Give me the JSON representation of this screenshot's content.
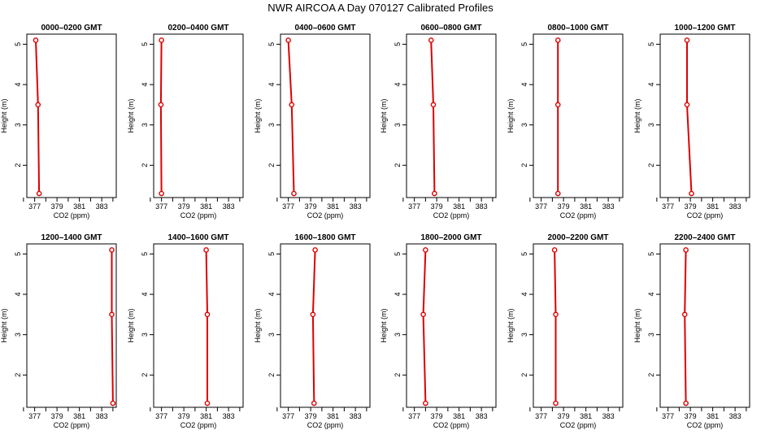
{
  "title": "NWR AIRCOA A  Day 070127  Calibrated Profiles",
  "colors": {
    "profile": "#dd0000",
    "axis": "#000000",
    "background": "#ffffff"
  },
  "chart_data": [
    {
      "type": "line",
      "title": "0000–0200 GMT",
      "xlabel": "CO2 (ppm)",
      "ylabel": "Height (m)",
      "xlim": [
        376.3,
        384.3
      ],
      "ylim": [
        1.2,
        5.25
      ],
      "xticks": [
        377,
        379,
        381,
        383
      ],
      "yticks": [
        2,
        3,
        4,
        5
      ],
      "grid": false,
      "series": [
        {
          "x": [
            377.4,
            377.3,
            377.1
          ],
          "y": [
            1.3,
            3.5,
            5.1
          ]
        }
      ]
    },
    {
      "type": "line",
      "title": "0200–0400 GMT",
      "xlabel": "CO2 (ppm)",
      "ylabel": "Height (m)",
      "xlim": [
        376.3,
        384.3
      ],
      "ylim": [
        1.2,
        5.25
      ],
      "xticks": [
        377,
        379,
        381,
        383
      ],
      "yticks": [
        2,
        3,
        4,
        5
      ],
      "grid": false,
      "series": [
        {
          "x": [
            377.0,
            376.95,
            377.0
          ],
          "y": [
            1.3,
            3.5,
            5.1
          ]
        }
      ]
    },
    {
      "type": "line",
      "title": "0400–0600 GMT",
      "xlabel": "CO2 (ppm)",
      "ylabel": "Height (m)",
      "xlim": [
        376.3,
        384.3
      ],
      "ylim": [
        1.2,
        5.25
      ],
      "xticks": [
        377,
        379,
        381,
        383
      ],
      "yticks": [
        2,
        3,
        4,
        5
      ],
      "grid": false,
      "series": [
        {
          "x": [
            377.5,
            377.3,
            377.0
          ],
          "y": [
            1.3,
            3.5,
            5.1
          ]
        }
      ]
    },
    {
      "type": "line",
      "title": "0600–0800 GMT",
      "xlabel": "CO2 (ppm)",
      "ylabel": "Height (m)",
      "xlim": [
        376.3,
        384.3
      ],
      "ylim": [
        1.2,
        5.25
      ],
      "xticks": [
        377,
        379,
        381,
        383
      ],
      "yticks": [
        2,
        3,
        4,
        5
      ],
      "grid": false,
      "series": [
        {
          "x": [
            378.8,
            378.7,
            378.5
          ],
          "y": [
            1.3,
            3.5,
            5.1
          ]
        }
      ]
    },
    {
      "type": "line",
      "title": "0800–1000 GMT",
      "xlabel": "CO2 (ppm)",
      "ylabel": "Height (m)",
      "xlim": [
        376.3,
        384.3
      ],
      "ylim": [
        1.2,
        5.25
      ],
      "xticks": [
        377,
        379,
        381,
        383
      ],
      "yticks": [
        2,
        3,
        4,
        5
      ],
      "grid": false,
      "series": [
        {
          "x": [
            378.5,
            378.5,
            378.5
          ],
          "y": [
            1.3,
            3.5,
            5.1
          ]
        }
      ]
    },
    {
      "type": "line",
      "title": "1000–1200 GMT",
      "xlabel": "CO2 (ppm)",
      "ylabel": "Height (m)",
      "xlim": [
        376.3,
        384.3
      ],
      "ylim": [
        1.2,
        5.25
      ],
      "xticks": [
        377,
        379,
        381,
        383
      ],
      "yticks": [
        2,
        3,
        4,
        5
      ],
      "grid": false,
      "series": [
        {
          "x": [
            379.1,
            378.7,
            378.7
          ],
          "y": [
            1.3,
            3.5,
            5.1
          ]
        }
      ]
    },
    {
      "type": "line",
      "title": "1200–1400 GMT",
      "xlabel": "CO2 (ppm)",
      "ylabel": "Height (m)",
      "xlim": [
        376.3,
        384.3
      ],
      "ylim": [
        1.2,
        5.25
      ],
      "xticks": [
        377,
        379,
        381,
        383
      ],
      "yticks": [
        2,
        3,
        4,
        5
      ],
      "grid": false,
      "series": [
        {
          "x": [
            384.0,
            383.9,
            383.9
          ],
          "y": [
            1.3,
            3.5,
            5.1
          ]
        }
      ]
    },
    {
      "type": "line",
      "title": "1400–1600 GMT",
      "xlabel": "CO2 (ppm)",
      "ylabel": "Height (m)",
      "xlim": [
        376.3,
        384.3
      ],
      "ylim": [
        1.2,
        5.25
      ],
      "xticks": [
        377,
        379,
        381,
        383
      ],
      "yticks": [
        2,
        3,
        4,
        5
      ],
      "grid": false,
      "series": [
        {
          "x": [
            381.1,
            381.1,
            381.0
          ],
          "y": [
            1.3,
            3.5,
            5.1
          ]
        }
      ]
    },
    {
      "type": "line",
      "title": "1600–1800 GMT",
      "xlabel": "CO2 (ppm)",
      "ylabel": "Height (m)",
      "xlim": [
        376.3,
        384.3
      ],
      "ylim": [
        1.2,
        5.25
      ],
      "xticks": [
        377,
        379,
        381,
        383
      ],
      "yticks": [
        2,
        3,
        4,
        5
      ],
      "grid": false,
      "series": [
        {
          "x": [
            379.3,
            379.2,
            379.4
          ],
          "y": [
            1.3,
            3.5,
            5.1
          ]
        }
      ]
    },
    {
      "type": "line",
      "title": "1800–2000 GMT",
      "xlabel": "CO2 (ppm)",
      "ylabel": "Height (m)",
      "xlim": [
        376.3,
        384.3
      ],
      "ylim": [
        1.2,
        5.25
      ],
      "xticks": [
        377,
        379,
        381,
        383
      ],
      "yticks": [
        2,
        3,
        4,
        5
      ],
      "grid": false,
      "series": [
        {
          "x": [
            378.0,
            377.8,
            378.0
          ],
          "y": [
            1.3,
            3.5,
            5.1
          ]
        }
      ]
    },
    {
      "type": "line",
      "title": "2000–2200 GMT",
      "xlabel": "CO2 (ppm)",
      "ylabel": "Height (m)",
      "xlim": [
        376.3,
        384.3
      ],
      "ylim": [
        1.2,
        5.25
      ],
      "xticks": [
        377,
        379,
        381,
        383
      ],
      "yticks": [
        2,
        3,
        4,
        5
      ],
      "grid": false,
      "series": [
        {
          "x": [
            378.3,
            378.3,
            378.2
          ],
          "y": [
            1.3,
            3.5,
            5.1
          ]
        }
      ]
    },
    {
      "type": "line",
      "title": "2200–2400 GMT",
      "xlabel": "CO2 (ppm)",
      "ylabel": "Height (m)",
      "xlim": [
        376.3,
        384.3
      ],
      "ylim": [
        1.2,
        5.25
      ],
      "xticks": [
        377,
        379,
        381,
        383
      ],
      "yticks": [
        2,
        3,
        4,
        5
      ],
      "grid": false,
      "series": [
        {
          "x": [
            378.6,
            378.5,
            378.6
          ],
          "y": [
            1.3,
            3.5,
            5.1
          ]
        }
      ]
    }
  ]
}
